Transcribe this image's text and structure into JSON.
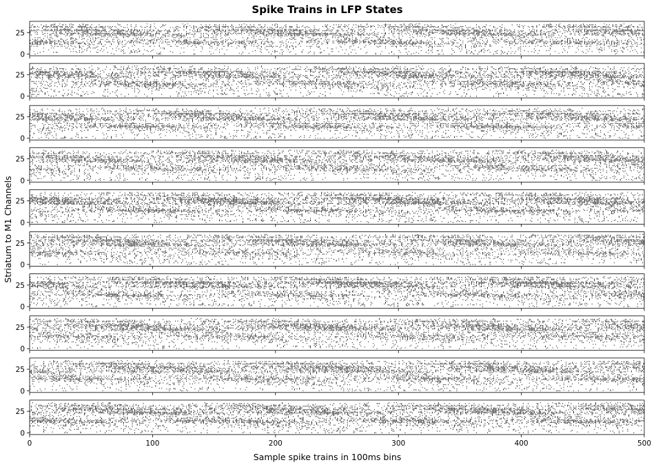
{
  "chart_data": {
    "type": "raster",
    "title": "Spike Trains in LFP States",
    "xlabel": "Sample spike trains in 100ms bins",
    "ylabel": "Striatum to M1 Channels",
    "panel_count": 10,
    "xlim": [
      0,
      500
    ],
    "ylim": [
      -2,
      38
    ],
    "x_ticks": [
      0,
      100,
      200,
      300,
      400,
      500
    ],
    "y_ticks": [
      0,
      25
    ],
    "channels": 36,
    "time_bins": 500,
    "spike_color": "#000000"
  }
}
